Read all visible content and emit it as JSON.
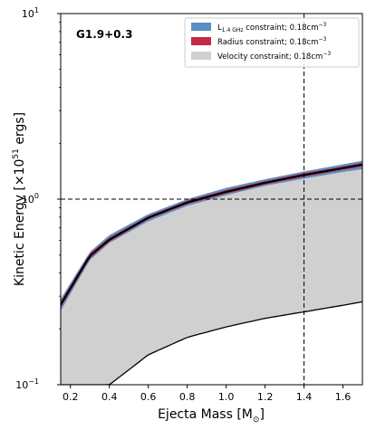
{
  "chart_data": {
    "type": "area",
    "annotation": "G1.9+0.3",
    "xlabel": "Ejecta Mass [M",
    "xlabel_sub": "⊙",
    "xlabel_end": "]",
    "ylabel": "Kinetic Energy [×10",
    "ylabel_sup": "51",
    "ylabel_end": " ergs]",
    "xlim": [
      0.15,
      1.7
    ],
    "ylim": [
      0.1,
      10
    ],
    "yscale": "log",
    "x_ticks": [
      "0.2",
      "0.4",
      "0.6",
      "0.8",
      "1.0",
      "1.2",
      "1.4",
      "1.6"
    ],
    "y_ticks": [
      {
        "base": "10",
        "exp": "−1",
        "value": 0.1
      },
      {
        "base": "10",
        "exp": "0",
        "value": 1
      },
      {
        "base": "10",
        "exp": "1",
        "value": 10
      }
    ],
    "reference_lines": {
      "x": 1.4,
      "y": 1.0
    },
    "legend_position": "top-right",
    "legend": [
      {
        "pre": "L",
        "sub": "1.4 GHz",
        "post": " constraint; 0.18cm",
        "sup": "−3",
        "color": "#5b8ec4"
      },
      {
        "pre": "Radius constraint; 0.18cm",
        "sub": "",
        "post": "",
        "sup": "−3",
        "color": "#c42a43"
      },
      {
        "pre": "Velocity constraint; 0.18cm",
        "sub": "",
        "post": "",
        "sup": "−3",
        "color": "#d0d0d0"
      }
    ],
    "series": [
      {
        "name": "Velocity constraint",
        "color": "#d0d0d0",
        "x": [
          0.15,
          0.3,
          0.4,
          0.6,
          0.8,
          1.0,
          1.2,
          1.4,
          1.6,
          1.7
        ],
        "y_upper": [
          0.25,
          0.47,
          0.58,
          0.76,
          0.92,
          1.05,
          1.18,
          1.29,
          1.4,
          1.45
        ],
        "y_lower": [
          0.1,
          0.1,
          0.1,
          0.145,
          0.18,
          0.205,
          0.228,
          0.247,
          0.268,
          0.28
        ]
      },
      {
        "name": "L1.4 GHz constraint",
        "color": "#5b8ec4",
        "x": [
          0.15,
          0.3,
          0.4,
          0.6,
          0.8,
          1.0,
          1.2,
          1.4,
          1.6,
          1.7
        ],
        "y_upper": [
          0.29,
          0.52,
          0.64,
          0.83,
          1.0,
          1.15,
          1.28,
          1.41,
          1.54,
          1.61
        ],
        "y_lower": [
          0.25,
          0.47,
          0.58,
          0.76,
          0.92,
          1.05,
          1.18,
          1.29,
          1.4,
          1.45
        ]
      },
      {
        "name": "Radius constraint",
        "color": "#c42a43",
        "x": [
          0.15,
          0.3,
          0.4,
          0.6,
          0.8,
          1.0,
          1.2,
          1.4,
          1.6,
          1.7
        ],
        "y_upper": [
          0.28,
          0.51,
          0.62,
          0.81,
          0.98,
          1.12,
          1.25,
          1.38,
          1.5,
          1.57
        ],
        "y_lower": [
          0.26,
          0.48,
          0.59,
          0.78,
          0.94,
          1.07,
          1.2,
          1.32,
          1.44,
          1.5
        ]
      }
    ],
    "center_line": {
      "x": [
        0.15,
        0.3,
        0.4,
        0.6,
        0.8,
        1.0,
        1.2,
        1.4,
        1.6,
        1.7
      ],
      "y": [
        0.27,
        0.495,
        0.605,
        0.795,
        0.96,
        1.095,
        1.225,
        1.35,
        1.47,
        1.535
      ]
    }
  }
}
